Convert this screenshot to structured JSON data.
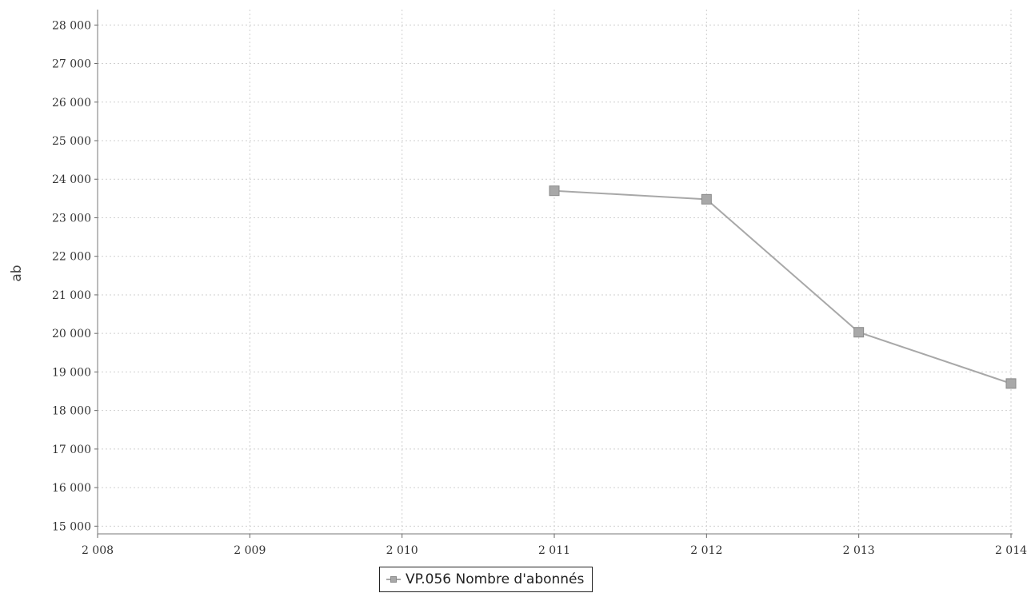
{
  "chart_data": {
    "type": "line",
    "ylabel": "ab",
    "x_ticks": [
      "2 008",
      "2 009",
      "2 010",
      "2 011",
      "2 012",
      "2 013",
      "2 014"
    ],
    "y_ticks": [
      "15 000",
      "16 000",
      "17 000",
      "18 000",
      "19 000",
      "20 000",
      "21 000",
      "22 000",
      "23 000",
      "24 000",
      "25 000",
      "26 000",
      "27 000",
      "28 000"
    ],
    "xlim": [
      2008,
      2014
    ],
    "ylim": [
      14800,
      28400
    ],
    "grid": true,
    "legend_position": "bottom-center",
    "series": [
      {
        "name": "VP.056 Nombre d'abonnés",
        "color": "#a8a8a8",
        "marker": "square",
        "x": [
          2011,
          2012,
          2013,
          2014
        ],
        "y": [
          23700,
          23480,
          20030,
          18700
        ]
      }
    ]
  }
}
